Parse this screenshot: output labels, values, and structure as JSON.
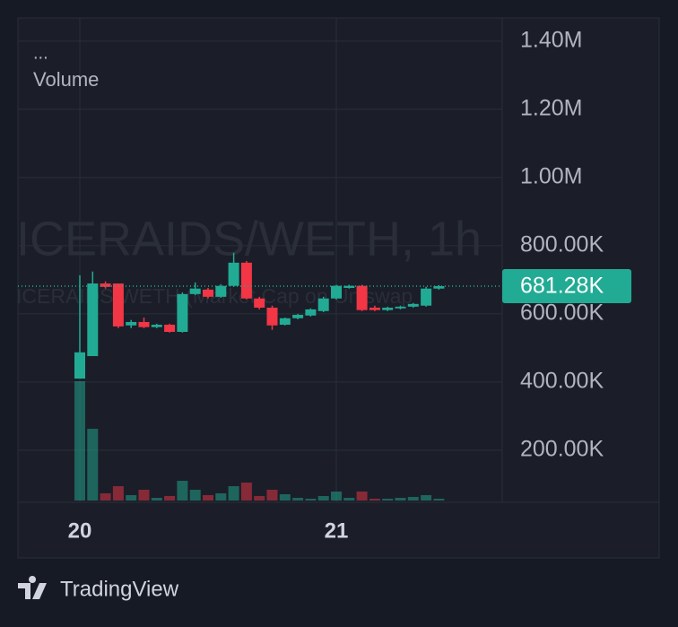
{
  "chart_data": {
    "type": "candlestick",
    "watermark": "ICERAIDS/WETH, 1h",
    "watermark_subtitle": "ICERAIDS/WETH (Market Cap on Uniswap",
    "legend_dots": "...",
    "volume_label": "Volume",
    "categories": [
      "20",
      null,
      null,
      null,
      null,
      null,
      null,
      null,
      null,
      null,
      null,
      null,
      null,
      null,
      null,
      null,
      null,
      null,
      null,
      null,
      "21",
      null,
      null,
      null,
      null,
      null,
      null,
      null,
      null
    ],
    "open": [
      410000,
      476000,
      689000,
      689000,
      566000,
      576000,
      561000,
      568000,
      547000,
      658000,
      671000,
      650000,
      682000,
      750000,
      645000,
      618000,
      568000,
      587000,
      595000,
      608000,
      645000,
      676000,
      682000,
      618000,
      611000,
      616000,
      621000,
      624000,
      674000
    ],
    "close": [
      487000,
      689000,
      679000,
      563000,
      576000,
      561000,
      568000,
      547000,
      658000,
      674000,
      650000,
      682000,
      750000,
      645000,
      618000,
      566000,
      587000,
      597000,
      613000,
      645000,
      682000,
      682000,
      611000,
      611000,
      618000,
      621000,
      629000,
      674000,
      681280
    ],
    "high": [
      713000,
      724000,
      695000,
      689000,
      582000,
      589000,
      571000,
      571000,
      663000,
      692000,
      676000,
      687000,
      779000,
      755000,
      650000,
      624000,
      589000,
      600000,
      616000,
      650000,
      685000,
      685000,
      685000,
      624000,
      621000,
      624000,
      632000,
      679000,
      684000
    ],
    "low": [
      410000,
      476000,
      674000,
      558000,
      558000,
      558000,
      558000,
      545000,
      545000,
      655000,
      645000,
      647000,
      679000,
      642000,
      613000,
      553000,
      566000,
      584000,
      592000,
      605000,
      642000,
      674000,
      608000,
      608000,
      608000,
      613000,
      618000,
      621000,
      671000
    ],
    "volume": [
      133,
      80,
      8,
      16,
      6,
      12,
      3,
      5,
      22,
      12,
      6,
      8,
      16,
      20,
      5,
      12,
      7,
      3,
      2,
      5,
      10,
      3,
      10,
      2,
      2,
      3,
      4,
      6,
      2
    ],
    "volume_lim": [
      0,
      150
    ],
    "up_color": "#22ab94",
    "down_color": "#f23645",
    "ylim": [
      47000,
      1468000
    ],
    "yticks": [
      {
        "value": 200000,
        "label": "200.00K"
      },
      {
        "value": 400000,
        "label": "400.00K"
      },
      {
        "value": 600000,
        "label": "600.00K"
      },
      {
        "value": 800000,
        "label": "800.00K"
      },
      {
        "value": 1000000,
        "label": "1.00M"
      },
      {
        "value": 1200000,
        "label": "1.20M"
      },
      {
        "value": 1400000,
        "label": "1.40M"
      }
    ],
    "last_price": {
      "value": 681280,
      "label": "681.28K"
    },
    "grid": true
  },
  "footer": {
    "brand": "TradingView"
  }
}
